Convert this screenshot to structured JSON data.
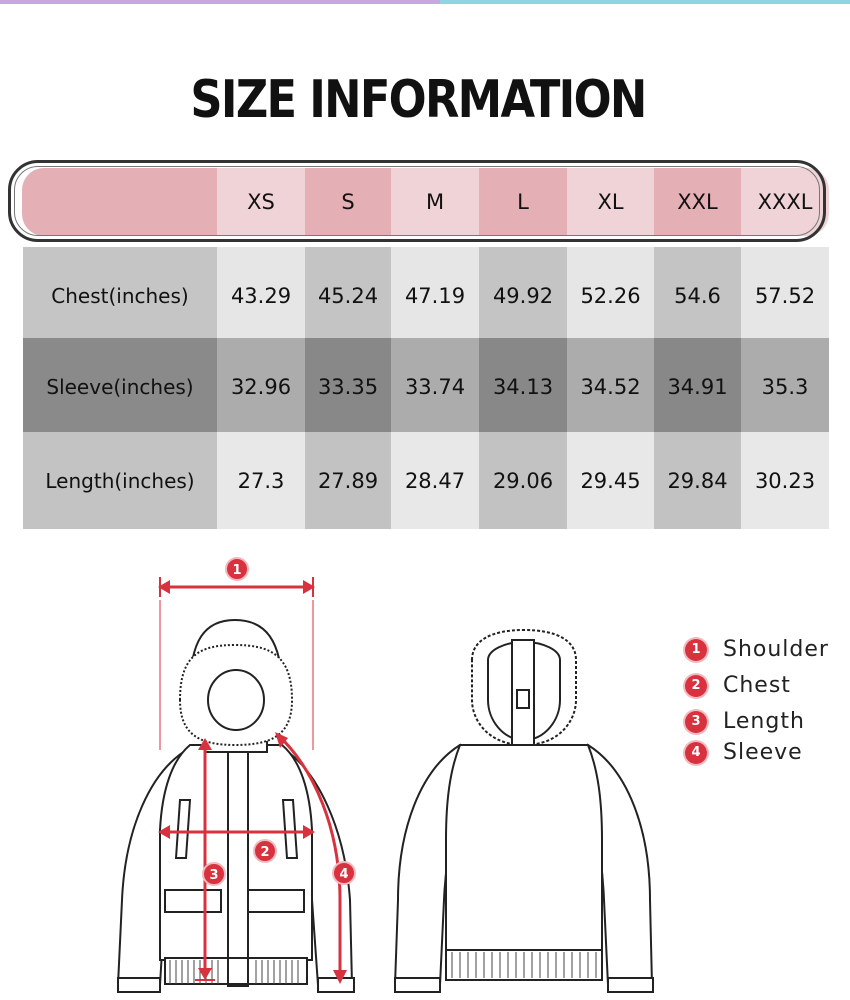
{
  "title": "SIZE INFORMATION",
  "table": {
    "sizes": [
      "XS",
      "S",
      "M",
      "L",
      "XL",
      "XXL",
      "XXXL"
    ],
    "rows": [
      {
        "label": "Chest(inches)",
        "values": [
          "43.29",
          "45.24",
          "47.19",
          "49.92",
          "52.26",
          "54.6",
          "57.52"
        ]
      },
      {
        "label": "Sleeve(inches)",
        "values": [
          "32.96",
          "33.35",
          "33.74",
          "34.13",
          "34.52",
          "34.91",
          "35.3"
        ]
      },
      {
        "label": "Length(inches)",
        "values": [
          "27.3",
          "27.89",
          "28.47",
          "29.06",
          "29.45",
          "29.84",
          "30.23"
        ]
      }
    ]
  },
  "legend": [
    {
      "num": "1",
      "label": "Shoulder"
    },
    {
      "num": "2",
      "label": "Chest"
    },
    {
      "num": "3",
      "label": "Length"
    },
    {
      "num": "4",
      "label": "Sleeve"
    }
  ],
  "diagram_markers": {
    "shoulder": "1",
    "chest": "2",
    "length": "3",
    "sleeve": "4"
  },
  "colors": {
    "header_dark": "#e5b0b5",
    "header_light": "#efd3d6",
    "measure_red": "#d8323e",
    "row1_light": "#e5e5e5",
    "row1_dark": "#c4c4c4",
    "row2_light": "#ababab",
    "row2_dark": "#878787",
    "row3_light": "#e8e8e8",
    "row3_dark": "#c2c2c2"
  }
}
